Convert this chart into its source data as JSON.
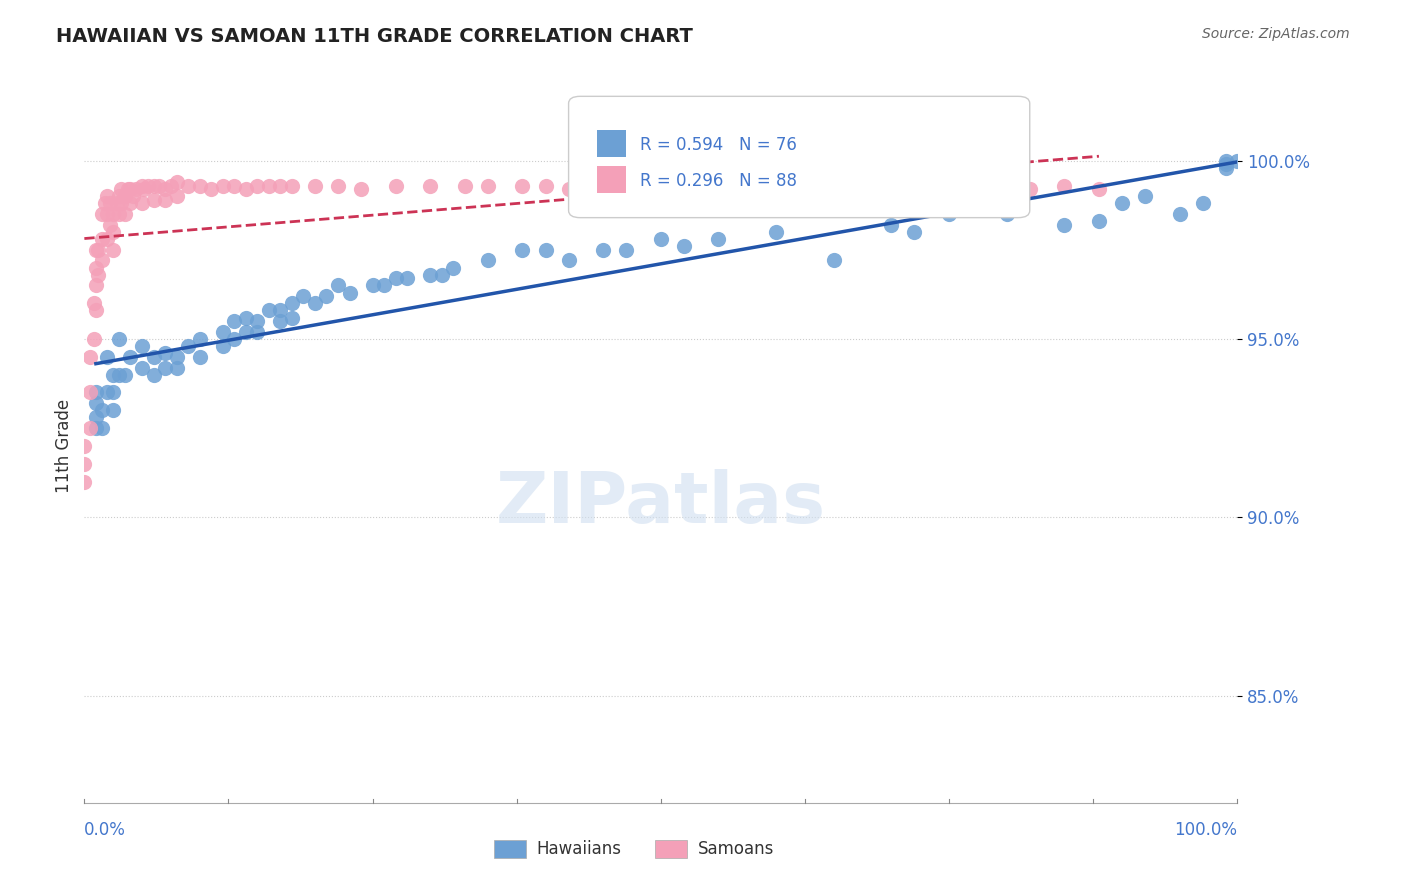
{
  "title": "HAWAIIAN VS SAMOAN 11TH GRADE CORRELATION CHART",
  "source": "Source: ZipAtlas.com",
  "ylabel": "11th Grade",
  "legend_blue": "R = 0.594   N = 76",
  "legend_pink": "R = 0.296   N = 88",
  "legend_label_blue": "Hawaiians",
  "legend_label_pink": "Samoans",
  "blue_color": "#6ca0d4",
  "pink_color": "#f4a0b8",
  "trend_blue_color": "#2255aa",
  "trend_pink_color": "#cc3355",
  "hawaiian_x": [
    0.01,
    0.01,
    0.01,
    0.01,
    0.015,
    0.015,
    0.02,
    0.02,
    0.025,
    0.025,
    0.025,
    0.03,
    0.03,
    0.035,
    0.04,
    0.05,
    0.05,
    0.06,
    0.06,
    0.07,
    0.07,
    0.08,
    0.08,
    0.09,
    0.1,
    0.1,
    0.12,
    0.12,
    0.13,
    0.13,
    0.14,
    0.14,
    0.15,
    0.15,
    0.16,
    0.17,
    0.17,
    0.18,
    0.18,
    0.19,
    0.2,
    0.21,
    0.22,
    0.23,
    0.25,
    0.26,
    0.27,
    0.28,
    0.3,
    0.31,
    0.32,
    0.35,
    0.38,
    0.4,
    0.42,
    0.45,
    0.47,
    0.5,
    0.52,
    0.55,
    0.6,
    0.65,
    0.7,
    0.72,
    0.75,
    0.8,
    0.85,
    0.88,
    0.9,
    0.92,
    0.95,
    0.97,
    0.99,
    0.99,
    0.99,
    1.0
  ],
  "hawaiian_y": [
    0.935,
    0.932,
    0.928,
    0.925,
    0.93,
    0.925,
    0.945,
    0.935,
    0.94,
    0.935,
    0.93,
    0.95,
    0.94,
    0.94,
    0.945,
    0.948,
    0.942,
    0.945,
    0.94,
    0.946,
    0.942,
    0.945,
    0.942,
    0.948,
    0.95,
    0.945,
    0.952,
    0.948,
    0.955,
    0.95,
    0.956,
    0.952,
    0.955,
    0.952,
    0.958,
    0.958,
    0.955,
    0.96,
    0.956,
    0.962,
    0.96,
    0.962,
    0.965,
    0.963,
    0.965,
    0.965,
    0.967,
    0.967,
    0.968,
    0.968,
    0.97,
    0.972,
    0.975,
    0.975,
    0.972,
    0.975,
    0.975,
    0.978,
    0.976,
    0.978,
    0.98,
    0.972,
    0.982,
    0.98,
    0.985,
    0.985,
    0.982,
    0.983,
    0.988,
    0.99,
    0.985,
    0.988,
    0.998,
    0.999,
    1.0,
    1.0
  ],
  "samoan_x": [
    0.0,
    0.0,
    0.0,
    0.005,
    0.005,
    0.005,
    0.008,
    0.008,
    0.01,
    0.01,
    0.01,
    0.01,
    0.012,
    0.012,
    0.015,
    0.015,
    0.015,
    0.018,
    0.02,
    0.02,
    0.02,
    0.022,
    0.022,
    0.025,
    0.025,
    0.025,
    0.028,
    0.03,
    0.03,
    0.032,
    0.032,
    0.035,
    0.035,
    0.038,
    0.04,
    0.04,
    0.042,
    0.045,
    0.05,
    0.05,
    0.052,
    0.055,
    0.06,
    0.06,
    0.065,
    0.07,
    0.07,
    0.075,
    0.08,
    0.08,
    0.09,
    0.1,
    0.11,
    0.12,
    0.13,
    0.14,
    0.15,
    0.16,
    0.17,
    0.18,
    0.2,
    0.22,
    0.24,
    0.27,
    0.3,
    0.33,
    0.35,
    0.38,
    0.4,
    0.42,
    0.45,
    0.48,
    0.5,
    0.52,
    0.55,
    0.58,
    0.6,
    0.63,
    0.65,
    0.68,
    0.7,
    0.73,
    0.75,
    0.78,
    0.8,
    0.82,
    0.85,
    0.88
  ],
  "samoan_y": [
    0.92,
    0.915,
    0.91,
    0.945,
    0.935,
    0.925,
    0.96,
    0.95,
    0.975,
    0.97,
    0.965,
    0.958,
    0.975,
    0.968,
    0.985,
    0.978,
    0.972,
    0.988,
    0.99,
    0.985,
    0.978,
    0.988,
    0.982,
    0.985,
    0.98,
    0.975,
    0.988,
    0.99,
    0.985,
    0.992,
    0.988,
    0.99,
    0.985,
    0.992,
    0.992,
    0.988,
    0.99,
    0.992,
    0.993,
    0.988,
    0.992,
    0.993,
    0.993,
    0.989,
    0.993,
    0.992,
    0.989,
    0.993,
    0.994,
    0.99,
    0.993,
    0.993,
    0.992,
    0.993,
    0.993,
    0.992,
    0.993,
    0.993,
    0.993,
    0.993,
    0.993,
    0.993,
    0.992,
    0.993,
    0.993,
    0.993,
    0.993,
    0.993,
    0.993,
    0.992,
    0.993,
    0.993,
    0.993,
    0.992,
    0.993,
    0.992,
    0.993,
    0.992,
    0.993,
    0.992,
    0.992,
    0.992,
    0.992,
    0.992,
    0.992,
    0.992,
    0.993,
    0.992
  ],
  "xlim": [
    0.0,
    1.0
  ],
  "ylim": [
    0.82,
    1.02
  ],
  "ytick_vals": [
    0.85,
    0.9,
    0.95,
    1.0
  ],
  "ytick_labels": [
    "85.0%",
    "90.0%",
    "95.0%",
    "100.0%"
  ]
}
